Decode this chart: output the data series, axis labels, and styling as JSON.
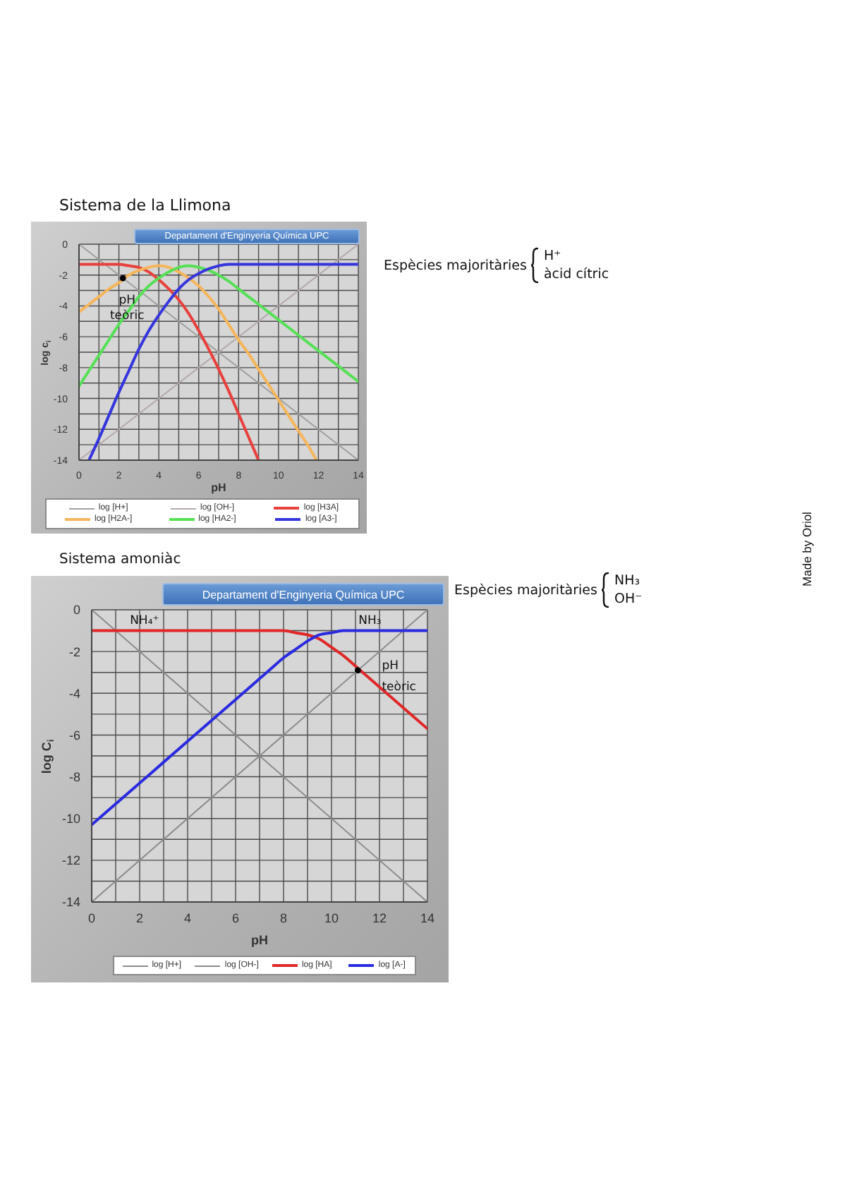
{
  "chart_data": [
    {
      "type": "line",
      "title": "Sistema de la Llimona",
      "subtitle": "Departament d'Enginyeria Química UPC",
      "xlabel": "pH",
      "ylabel": "log c$_{i}$",
      "xlim": [
        0,
        14
      ],
      "xticks": [
        0,
        {
          "value": 1,
          "label": null
        },
        2,
        {
          "value": 3,
          "label": null
        },
        4,
        {
          "value": 5,
          "label": null
        },
        6,
        {
          "value": 7,
          "label": null
        },
        8,
        {
          "value": 9,
          "label": null
        },
        10,
        {
          "value": 11,
          "label": null
        },
        12,
        {
          "value": 13,
          "label": null
        },
        14
      ],
      "ylim": [
        -14,
        0
      ],
      "yticks": [
        -14,
        {
          "value": -13,
          "label": null
        },
        -12,
        {
          "value": -11,
          "label": null
        },
        -10,
        {
          "value": -9,
          "label": null
        },
        -8,
        {
          "value": -7,
          "label": null
        },
        -6,
        {
          "value": -5,
          "label": null
        },
        -4,
        {
          "value": -3,
          "label": null
        },
        -2,
        {
          "value": -1,
          "label": null
        },
        0
      ],
      "grid": true,
      "legend": "bottom",
      "marker": "none",
      "annotations": [
        "Espècies majoritàries",
        "H⁺",
        "àcid cítric"
      ],
      "series": [
        {
          "name": "log [H+]",
          "color": "#a0a0a0",
          "x": [
            0,
            14
          ],
          "values": [
            0,
            -14
          ]
        },
        {
          "name": "log [OH-]",
          "color": "#b4a8a8",
          "x": [
            0,
            14
          ],
          "values": [
            -14,
            0
          ]
        },
        {
          "name": "log [H3A]",
          "color": "#e8403c",
          "x": [
            0,
            0.5,
            1,
            1.5,
            2,
            2.5,
            3,
            3.5,
            4,
            4.5,
            5,
            5.5,
            6,
            6.5,
            7,
            7.5,
            8,
            8.5,
            9
          ],
          "values": [
            -1.3,
            -1.3,
            -1.3,
            -1.3,
            -1.3,
            -1.4,
            -1.5,
            -1.8,
            -2.3,
            -2.9,
            -3.6,
            -4.5,
            -5.6,
            -6.8,
            -8.1,
            -9.5,
            -11.0,
            -12.5,
            -14.0
          ]
        },
        {
          "name": "log [H2A-]",
          "color": "#f5b55a",
          "x": [
            0,
            0.5,
            1,
            1.5,
            2,
            2.5,
            3,
            3.5,
            4,
            4.5,
            5,
            5.5,
            6,
            6.5,
            7,
            7.5,
            8,
            8.5,
            9,
            9.5,
            10,
            10.5,
            11,
            11.5,
            11.9
          ],
          "values": [
            -4.4,
            -3.9,
            -3.4,
            -2.9,
            -2.5,
            -2.0,
            -1.7,
            -1.5,
            -1.4,
            -1.5,
            -1.8,
            -2.2,
            -2.7,
            -3.4,
            -4.2,
            -5.2,
            -6.2,
            -7.1,
            -8.1,
            -9.1,
            -10.1,
            -11.1,
            -12.1,
            -13.1,
            -14.0
          ]
        },
        {
          "name": "log [HA2-]",
          "color": "#55e055",
          "x": [
            0,
            0.5,
            1,
            1.5,
            2,
            2.5,
            3,
            3.5,
            4,
            4.5,
            5,
            5.5,
            6,
            6.5,
            7,
            7.5,
            8,
            8.5,
            9,
            9.5,
            10,
            11,
            12,
            13,
            14
          ],
          "values": [
            -9.2,
            -8.2,
            -7.2,
            -6.2,
            -5.2,
            -4.3,
            -3.4,
            -2.7,
            -2.2,
            -1.8,
            -1.5,
            -1.4,
            -1.5,
            -1.7,
            -2.0,
            -2.4,
            -2.9,
            -3.4,
            -3.9,
            -4.4,
            -4.9,
            -5.9,
            -6.9,
            -7.9,
            -8.9
          ]
        },
        {
          "name": "log [A3-]",
          "color": "#3535dd",
          "x": [
            0.5,
            1,
            1.5,
            2,
            2.5,
            3,
            3.5,
            4,
            4.5,
            5,
            5.5,
            6,
            6.5,
            7,
            7.5,
            8,
            9,
            14
          ],
          "values": [
            -14.0,
            -12.6,
            -11.1,
            -9.6,
            -8.2,
            -6.8,
            -5.6,
            -4.6,
            -3.7,
            -2.9,
            -2.3,
            -1.9,
            -1.6,
            -1.4,
            -1.3,
            -1.3,
            -1.3,
            -1.3
          ]
        },
        {
          "type": "scatter",
          "name": "pH teòric",
          "color": "#000000",
          "marker": "circle",
          "x": [
            2.2
          ],
          "values": [
            -2.2
          ]
        }
      ]
    },
    {
      "type": "line",
      "title": "Sistema amoniàc",
      "subtitle": "Departament d'Enginyeria Química UPC",
      "xlabel": "pH",
      "ylabel": "log C$_{i}$",
      "xlim": [
        0,
        14
      ],
      "xticks": [
        0,
        {
          "value": 1,
          "label": null
        },
        2,
        {
          "value": 3,
          "label": null
        },
        4,
        {
          "value": 5,
          "label": null
        },
        6,
        {
          "value": 7,
          "label": null
        },
        8,
        {
          "value": 9,
          "label": null
        },
        10,
        {
          "value": 11,
          "label": null
        },
        12,
        {
          "value": 13,
          "label": null
        },
        14
      ],
      "ylim": [
        -14,
        0
      ],
      "yticks": [
        -14,
        {
          "value": -13,
          "label": null
        },
        -12,
        {
          "value": -11,
          "label": null
        },
        -10,
        {
          "value": -9,
          "label": null
        },
        -8,
        {
          "value": -7,
          "label": null
        },
        -6,
        {
          "value": -5,
          "label": null
        },
        -4,
        {
          "value": -3,
          "label": null
        },
        -2,
        {
          "value": -1,
          "label": null
        },
        0
      ],
      "grid": true,
      "legend": "bottom",
      "marker": "none",
      "annotations": [
        {
          "text": "NH₄⁺",
          "x": 2.2,
          "y": -1.0
        },
        {
          "text": "NH₃",
          "x": 11.6,
          "y": -1.0
        },
        "Espècies majoritàries",
        "NH₃",
        "OH⁻",
        "Made by Oriol"
      ],
      "series": [
        {
          "name": "log [H+]",
          "color": "#8c8c8c",
          "x": [
            0,
            14
          ],
          "values": [
            0,
            -14
          ]
        },
        {
          "name": "log [OH-]",
          "color": "#8c8c8c",
          "x": [
            0,
            14
          ],
          "values": [
            -14,
            0
          ]
        },
        {
          "name": "log [HA]",
          "color": "#e02828",
          "x": [
            0,
            7,
            8,
            8.5,
            9,
            9.5,
            10,
            10.5,
            11,
            12,
            13,
            14
          ],
          "values": [
            -1.0,
            -1.0,
            -1.0,
            -1.1,
            -1.2,
            -1.4,
            -1.8,
            -2.2,
            -2.7,
            -3.7,
            -4.7,
            -5.7
          ]
        },
        {
          "name": "log [A-]",
          "color": "#2a2ae0",
          "x": [
            0,
            1,
            2,
            3,
            4,
            5,
            6,
            7,
            7.5,
            8,
            8.5,
            9,
            9.5,
            10,
            10.5,
            11,
            12,
            13,
            14
          ],
          "values": [
            -10.3,
            -9.3,
            -8.3,
            -7.3,
            -6.3,
            -5.3,
            -4.3,
            -3.3,
            -2.8,
            -2.3,
            -1.9,
            -1.5,
            -1.2,
            -1.1,
            -1.0,
            -1.0,
            -1.0,
            -1.0,
            -1.0
          ]
        },
        {
          "type": "scatter",
          "name": "pH teòric",
          "color": "#000000",
          "marker": "circle",
          "x": [
            11.1
          ],
          "values": [
            -2.9
          ]
        }
      ]
    }
  ]
}
